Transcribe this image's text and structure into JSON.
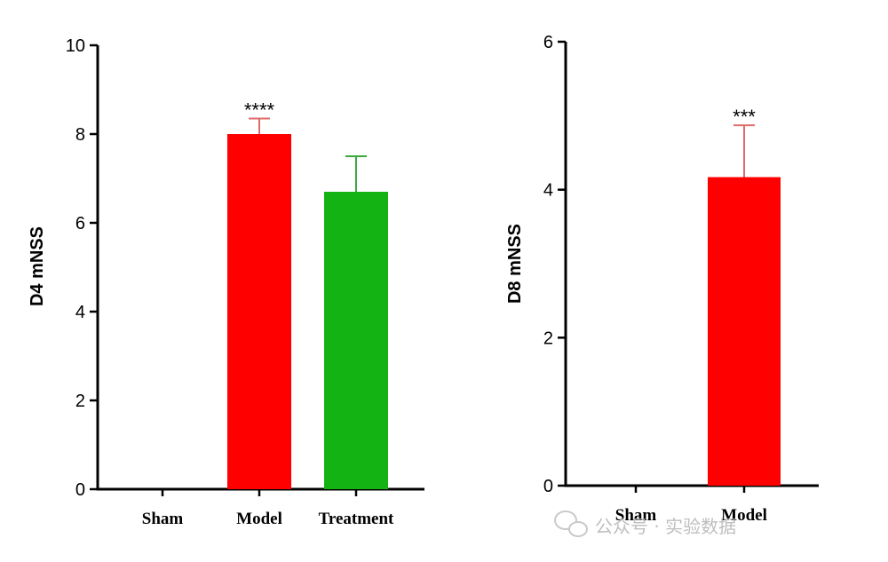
{
  "chart_data": [
    {
      "type": "bar",
      "title": "",
      "ylabel": "D4 mNSS",
      "xlabel": "",
      "ylim": [
        0,
        10
      ],
      "yticks": [
        "0",
        "2",
        "4",
        "6",
        "8",
        "10"
      ],
      "categories": [
        "Sham",
        "Model",
        "Treatment"
      ],
      "values": [
        0,
        8.0,
        6.7
      ],
      "errors": [
        0,
        0.35,
        0.8
      ],
      "colors": [
        "#ff0000",
        "#ff0000",
        "#12b312"
      ],
      "error_colors": [
        "#e06a6a",
        "#e06a6a",
        "#3aa83a"
      ],
      "annotations": [
        "",
        "****",
        ""
      ]
    },
    {
      "type": "bar",
      "title": "",
      "ylabel": "D8 mNSS",
      "xlabel": "",
      "ylim": [
        0,
        6
      ],
      "yticks": [
        "0",
        "2",
        "4",
        "6"
      ],
      "categories": [
        "Sham",
        "Model"
      ],
      "values": [
        0,
        4.17
      ],
      "errors": [
        0,
        0.7
      ],
      "colors": [
        "#ff0000",
        "#ff0000"
      ],
      "error_colors": [
        "#e06a6a",
        "#e06a6a"
      ],
      "annotations": [
        "",
        "***"
      ]
    }
  ],
  "watermark": {
    "text": "公众号 · 实验数据",
    "icon": "wechat-icon"
  }
}
